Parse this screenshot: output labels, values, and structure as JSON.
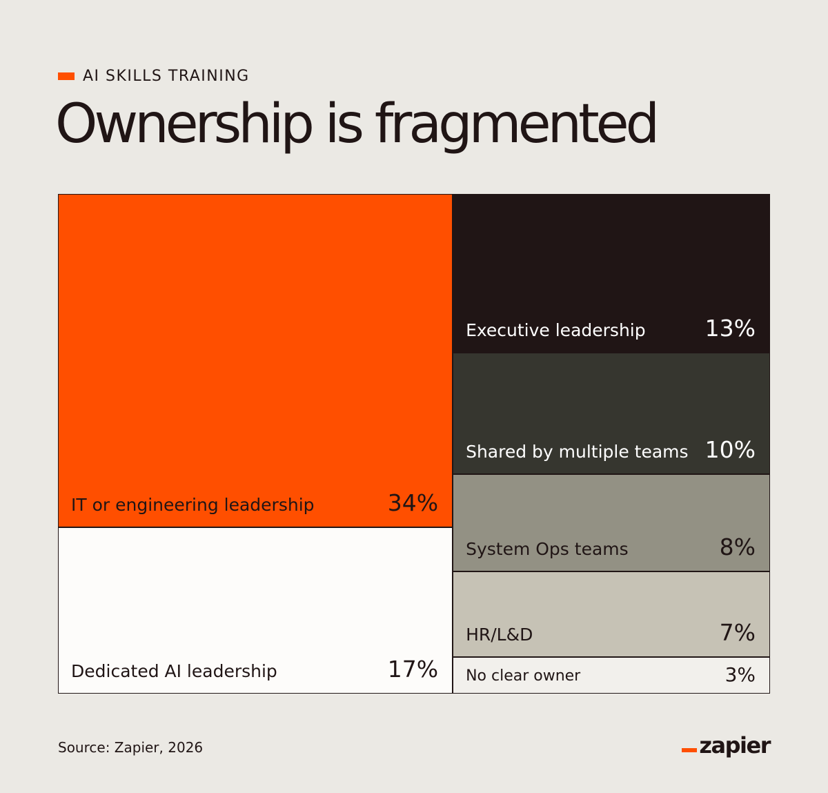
{
  "eyebrow": {
    "text": "AI SKILLS TRAINING",
    "accent_color": "#ff4f00"
  },
  "title": "Ownership is fragmented",
  "chart_data": {
    "type": "treemap",
    "title": "Ownership is fragmented",
    "unit": "%",
    "items": [
      {
        "label": "IT or engineering leadership",
        "value": 34,
        "value_label": "34%",
        "color": "#ff4f00",
        "text_color": "#201515"
      },
      {
        "label": "Dedicated AI leadership",
        "value": 17,
        "value_label": "17%",
        "color": "#fdfcfa",
        "text_color": "#201515"
      },
      {
        "label": "Executive leadership",
        "value": 13,
        "value_label": "13%",
        "color": "#201515",
        "text_color": "#ffffff"
      },
      {
        "label": "Shared by multiple teams",
        "value": 10,
        "value_label": "10%",
        "color": "#36362f",
        "text_color": "#ffffff"
      },
      {
        "label": "System Ops teams",
        "value": 8,
        "value_label": "8%",
        "color": "#939184",
        "text_color": "#201515"
      },
      {
        "label": "HR/L&D",
        "value": 7,
        "value_label": "7%",
        "color": "#c6c2b5",
        "text_color": "#201515"
      },
      {
        "label": "No clear owner",
        "value": 3,
        "value_label": "3%",
        "color": "#f2f0ec",
        "text_color": "#201515"
      }
    ]
  },
  "footer": {
    "source": "Source: Zapier, 2026",
    "logo_text": "zapier",
    "logo_accent": "#ff4f00"
  }
}
